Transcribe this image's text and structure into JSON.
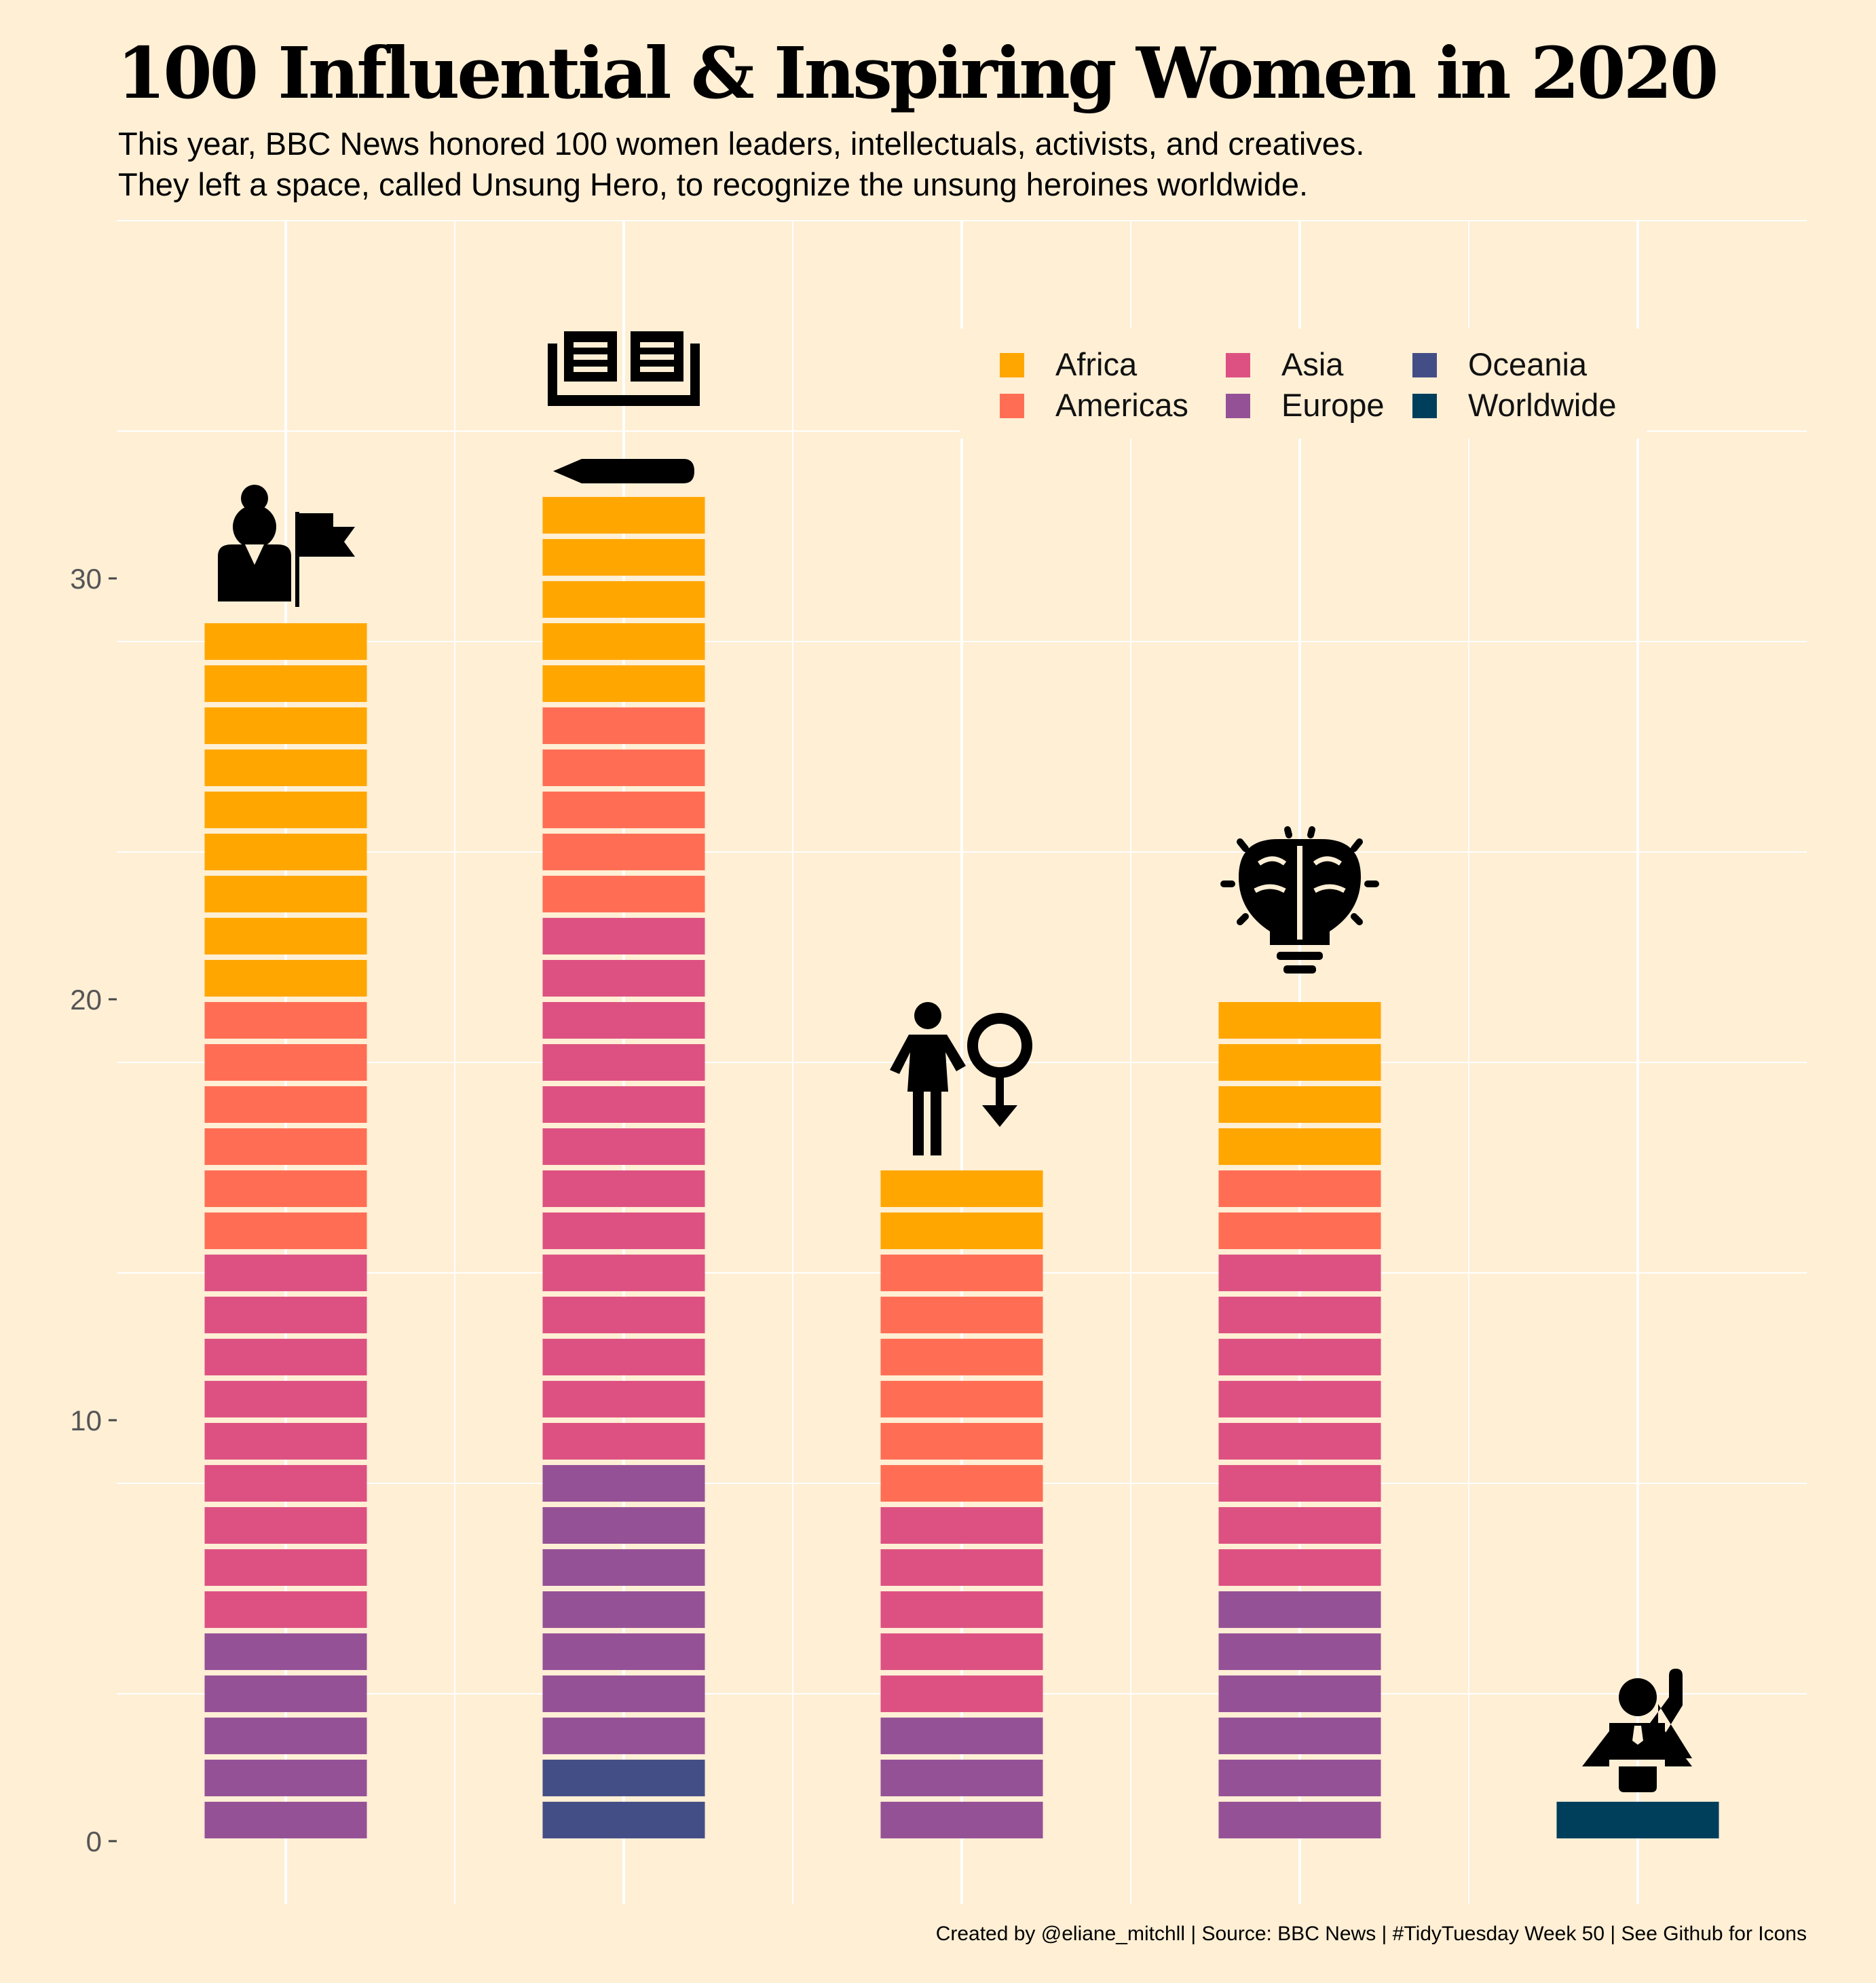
{
  "title": "100 Influential & Inspiring Women in 2020",
  "subtitle_lines": [
    "This year, BBC News honored 100 women leaders, intellectuals, activists, and creatives.",
    "They left a space, called Unsung Hero, to recognize the unsung heroines worldwide."
  ],
  "caption": "Created by @eliane_mitchll | Source: BBC News | #TidyTuesday Week 50 | See Github for Icons",
  "colors": {
    "background": "#feefd5",
    "grid": "#ffffff",
    "Africa": "#ffa600",
    "Americas": "#ff6e54",
    "Asia": "#dd5182",
    "Europe": "#955196",
    "Oceania": "#444e86",
    "Worldwide": "#003f5c"
  },
  "chart_data": {
    "type": "bar",
    "stacked": true,
    "unit_blocks": true,
    "categories_icons": [
      "leader-icon",
      "book-icon",
      "gender-icon",
      "brain-icon",
      "unsung-hero-icon"
    ],
    "series": [
      {
        "name": "Africa",
        "values": [
          9,
          5,
          2,
          4,
          0
        ]
      },
      {
        "name": "Americas",
        "values": [
          6,
          5,
          6,
          2,
          0
        ]
      },
      {
        "name": "Asia",
        "values": [
          9,
          13,
          5,
          8,
          0
        ]
      },
      {
        "name": "Europe",
        "values": [
          5,
          7,
          3,
          6,
          0
        ]
      },
      {
        "name": "Oceania",
        "values": [
          0,
          2,
          0,
          0,
          0
        ]
      },
      {
        "name": "Worldwide",
        "values": [
          0,
          0,
          0,
          0,
          1
        ]
      }
    ],
    "y_ticks": [
      0,
      10,
      20,
      30
    ],
    "ylim": [
      -1.5,
      38.5
    ],
    "grid": true,
    "legend_position": "top-right",
    "legend_columns": [
      [
        "Africa",
        "Americas"
      ],
      [
        "Asia",
        "Europe"
      ],
      [
        "Oceania",
        "Worldwide"
      ]
    ]
  }
}
